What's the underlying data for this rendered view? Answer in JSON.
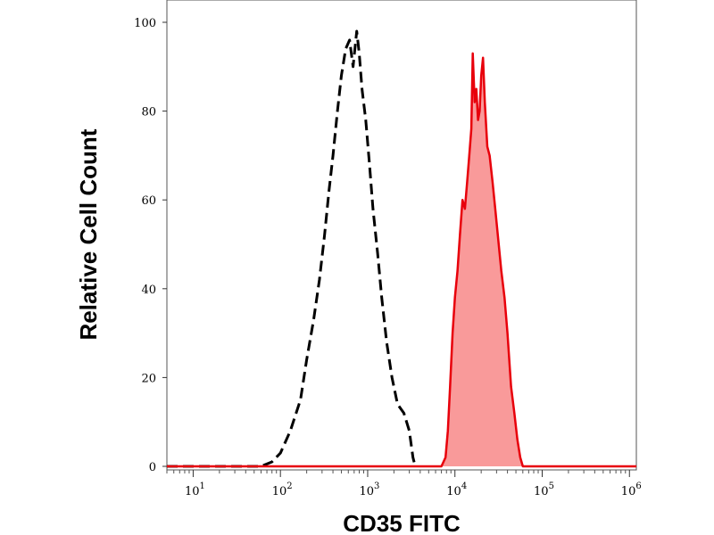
{
  "chart_data": {
    "type": "area",
    "title": "",
    "xlabel": "CD35 FITC",
    "ylabel": "Relative Cell Count",
    "xscale": "log",
    "xlim": [
      5,
      1200000.0
    ],
    "ylim": [
      0,
      100
    ],
    "grid": false,
    "legend": "none",
    "yticks": [
      {
        "value": 0,
        "label": "0"
      },
      {
        "value": 20,
        "label": "20"
      },
      {
        "value": 40,
        "label": "40"
      },
      {
        "value": 60,
        "label": "60"
      },
      {
        "value": 80,
        "label": "80"
      },
      {
        "value": 100,
        "label": "100"
      }
    ],
    "xticks": [
      {
        "value": 10,
        "base": "10",
        "exp": "1"
      },
      {
        "value": 100,
        "base": "10",
        "exp": "2"
      },
      {
        "value": 1000,
        "base": "10",
        "exp": "3"
      },
      {
        "value": 10000,
        "base": "10",
        "exp": "4"
      },
      {
        "value": 100000,
        "base": "10",
        "exp": "5"
      },
      {
        "value": 1000000,
        "base": "10",
        "exp": "6"
      }
    ],
    "series": [
      {
        "style": "dashed",
        "color": "#000000",
        "fill": "none",
        "points": [
          [
            5,
            0
          ],
          [
            30,
            0
          ],
          [
            60,
            0
          ],
          [
            80,
            1
          ],
          [
            100,
            3
          ],
          [
            130,
            8
          ],
          [
            170,
            15
          ],
          [
            200,
            24
          ],
          [
            240,
            33
          ],
          [
            280,
            42
          ],
          [
            320,
            52
          ],
          [
            360,
            62
          ],
          [
            400,
            70
          ],
          [
            450,
            80
          ],
          [
            500,
            88
          ],
          [
            560,
            94
          ],
          [
            620,
            96
          ],
          [
            680,
            90
          ],
          [
            750,
            98
          ],
          [
            800,
            93
          ],
          [
            860,
            85
          ],
          [
            950,
            78
          ],
          [
            1050,
            68
          ],
          [
            1150,
            58
          ],
          [
            1300,
            48
          ],
          [
            1450,
            38
          ],
          [
            1650,
            28
          ],
          [
            1900,
            20
          ],
          [
            2200,
            14
          ],
          [
            2600,
            12
          ],
          [
            3000,
            8
          ],
          [
            3300,
            2
          ],
          [
            3500,
            0
          ]
        ]
      },
      {
        "style": "solid",
        "color": "#e8000b",
        "fill": "#f99a9a",
        "points": [
          [
            5,
            0
          ],
          [
            7000,
            0
          ],
          [
            7800,
            2
          ],
          [
            8300,
            8
          ],
          [
            8800,
            18
          ],
          [
            9400,
            30
          ],
          [
            10000,
            38
          ],
          [
            10700,
            44
          ],
          [
            11400,
            52
          ],
          [
            12200,
            60
          ],
          [
            13000,
            58
          ],
          [
            13800,
            64
          ],
          [
            14600,
            70
          ],
          [
            15400,
            76
          ],
          [
            16000,
            93
          ],
          [
            16800,
            82
          ],
          [
            17600,
            85
          ],
          [
            18400,
            78
          ],
          [
            19200,
            80
          ],
          [
            20000,
            88
          ],
          [
            21000,
            92
          ],
          [
            22000,
            82
          ],
          [
            23500,
            72
          ],
          [
            25000,
            70
          ],
          [
            27000,
            64
          ],
          [
            29000,
            58
          ],
          [
            31000,
            52
          ],
          [
            34000,
            44
          ],
          [
            37000,
            38
          ],
          [
            40000,
            30
          ],
          [
            44000,
            18
          ],
          [
            48000,
            12
          ],
          [
            52000,
            6
          ],
          [
            56000,
            2
          ],
          [
            60000,
            0
          ],
          [
            1200000,
            0
          ]
        ]
      }
    ]
  }
}
